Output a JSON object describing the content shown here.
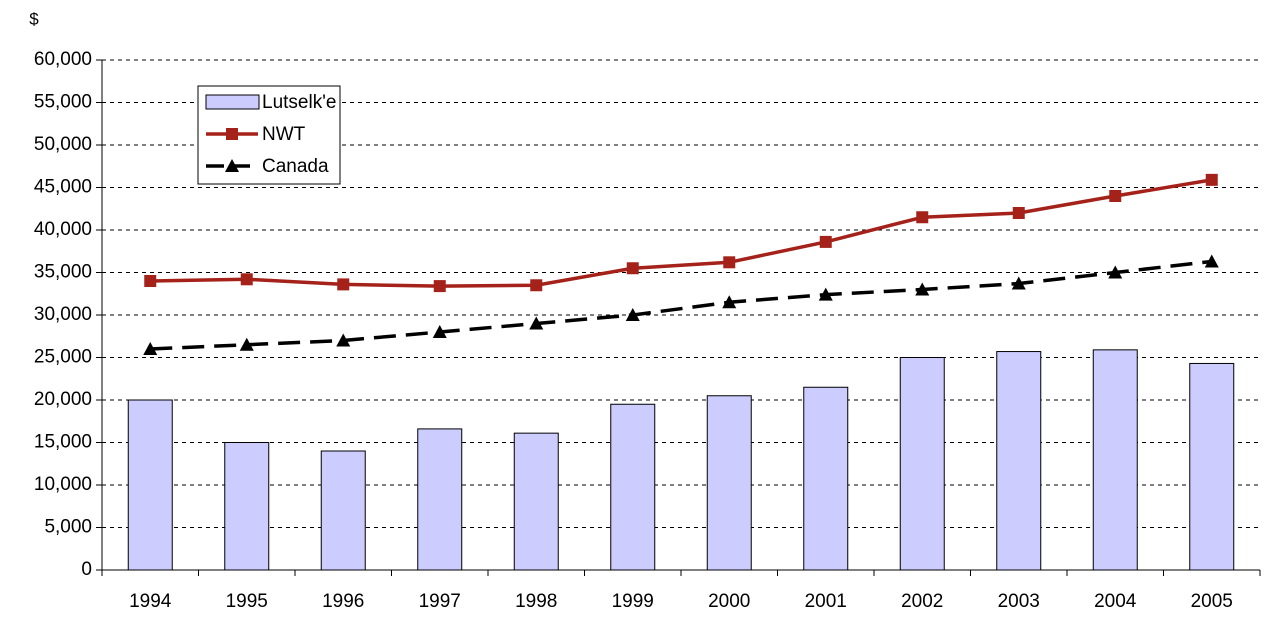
{
  "chart_data": {
    "type": "combo",
    "y_label": "$",
    "categories": [
      "1994",
      "1995",
      "1996",
      "1997",
      "1998",
      "1999",
      "2000",
      "2001",
      "2002",
      "2003",
      "2004",
      "2005"
    ],
    "series": [
      {
        "name": "Lutselk'e",
        "type": "bar",
        "color": "#ccccff",
        "values": [
          20000,
          15000,
          14000,
          16600,
          16100,
          19500,
          20500,
          21500,
          25000,
          25700,
          25900,
          24300
        ]
      },
      {
        "name": "NWT",
        "type": "line",
        "marker": "square",
        "color": "#a5221a",
        "values": [
          34000,
          34200,
          33600,
          33400,
          33500,
          35500,
          36200,
          38600,
          41500,
          42000,
          44000,
          45900
        ]
      },
      {
        "name": "Canada",
        "type": "line",
        "marker": "triangle",
        "dashed": true,
        "color": "#000000",
        "values": [
          26000,
          26500,
          27000,
          28000,
          29000,
          30000,
          31500,
          32400,
          33000,
          33700,
          35000,
          36300
        ]
      }
    ],
    "ylim": [
      0,
      60000
    ],
    "yticks": [
      0,
      {
        "value": 5000,
        "label": "5,000"
      },
      {
        "value": 10000,
        "label": "10,000"
      },
      {
        "value": 15000,
        "label": "15,000"
      },
      {
        "value": 20000,
        "label": "20,000"
      },
      {
        "value": 25000,
        "label": "25,000"
      },
      {
        "value": 30000,
        "label": "30,000"
      },
      {
        "value": 35000,
        "label": "35,000"
      },
      {
        "value": 40000,
        "label": "40,000"
      },
      {
        "value": 45000,
        "label": "45,000"
      },
      {
        "value": 50000,
        "label": "50,000"
      },
      {
        "value": 55000,
        "label": "55,000"
      },
      {
        "value": 60000,
        "label": "60,000"
      }
    ],
    "grid": true
  }
}
